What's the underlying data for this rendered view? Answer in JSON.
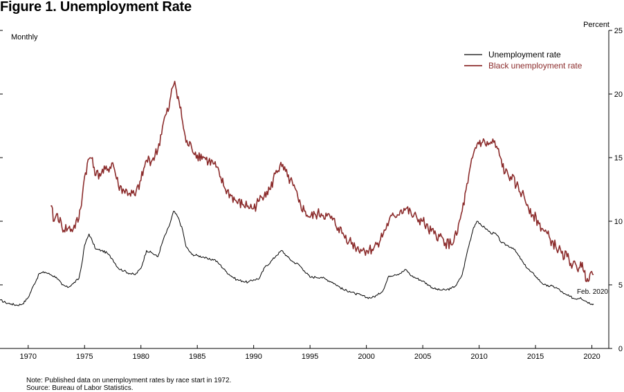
{
  "chart_data": {
    "type": "line",
    "title": "Figure 1. Unemployment Rate",
    "frequency_label": "Monthly",
    "ylabel": "Percent",
    "ylim": [
      0,
      25
    ],
    "y_ticks": [
      0,
      5,
      10,
      15,
      20,
      25
    ],
    "xlim": [
      1967.5,
      2021.5
    ],
    "x_ticks": [
      1970,
      1975,
      1980,
      1985,
      1990,
      1995,
      2000,
      2005,
      2010,
      2015,
      2020
    ],
    "colors": {
      "unemployment": "#000000",
      "black_unemployment": "#8b2b2b"
    },
    "series": [
      {
        "name": "Unemployment rate",
        "points": [
          [
            1967.5,
            3.8
          ],
          [
            1968.0,
            3.6
          ],
          [
            1968.5,
            3.5
          ],
          [
            1969.0,
            3.4
          ],
          [
            1969.5,
            3.5
          ],
          [
            1970.0,
            4.0
          ],
          [
            1970.5,
            5.0
          ],
          [
            1971.0,
            5.9
          ],
          [
            1971.5,
            6.0
          ],
          [
            1972.0,
            5.8
          ],
          [
            1972.5,
            5.6
          ],
          [
            1973.0,
            5.0
          ],
          [
            1973.5,
            4.8
          ],
          [
            1974.0,
            5.1
          ],
          [
            1974.5,
            5.5
          ],
          [
            1974.75,
            6.6
          ],
          [
            1975.0,
            8.1
          ],
          [
            1975.4,
            9.0
          ],
          [
            1975.7,
            8.4
          ],
          [
            1976.0,
            7.8
          ],
          [
            1976.5,
            7.7
          ],
          [
            1977.0,
            7.5
          ],
          [
            1977.5,
            7.0
          ],
          [
            1978.0,
            6.3
          ],
          [
            1978.5,
            6.1
          ],
          [
            1979.0,
            5.9
          ],
          [
            1979.5,
            5.8
          ],
          [
            1980.0,
            6.3
          ],
          [
            1980.5,
            7.7
          ],
          [
            1981.0,
            7.5
          ],
          [
            1981.5,
            7.2
          ],
          [
            1982.0,
            8.6
          ],
          [
            1982.5,
            9.6
          ],
          [
            1982.9,
            10.8
          ],
          [
            1983.3,
            10.3
          ],
          [
            1983.7,
            9.3
          ],
          [
            1984.0,
            8.0
          ],
          [
            1984.5,
            7.4
          ],
          [
            1985.0,
            7.3
          ],
          [
            1985.5,
            7.2
          ],
          [
            1986.0,
            7.0
          ],
          [
            1986.5,
            7.0
          ],
          [
            1987.0,
            6.6
          ],
          [
            1987.5,
            6.1
          ],
          [
            1988.0,
            5.7
          ],
          [
            1988.5,
            5.4
          ],
          [
            1989.0,
            5.3
          ],
          [
            1989.5,
            5.2
          ],
          [
            1990.0,
            5.4
          ],
          [
            1990.5,
            5.5
          ],
          [
            1991.0,
            6.4
          ],
          [
            1991.5,
            6.8
          ],
          [
            1992.0,
            7.3
          ],
          [
            1992.5,
            7.7
          ],
          [
            1993.0,
            7.2
          ],
          [
            1993.5,
            6.8
          ],
          [
            1994.0,
            6.6
          ],
          [
            1994.5,
            6.1
          ],
          [
            1995.0,
            5.6
          ],
          [
            1995.5,
            5.6
          ],
          [
            1996.0,
            5.6
          ],
          [
            1996.5,
            5.4
          ],
          [
            1997.0,
            5.2
          ],
          [
            1997.5,
            4.9
          ],
          [
            1998.0,
            4.6
          ],
          [
            1998.5,
            4.5
          ],
          [
            1999.0,
            4.3
          ],
          [
            1999.5,
            4.2
          ],
          [
            2000.0,
            4.0
          ],
          [
            2000.5,
            4.0
          ],
          [
            2001.0,
            4.2
          ],
          [
            2001.5,
            4.6
          ],
          [
            2002.0,
            5.7
          ],
          [
            2002.5,
            5.8
          ],
          [
            2003.0,
            5.9
          ],
          [
            2003.5,
            6.2
          ],
          [
            2004.0,
            5.7
          ],
          [
            2004.5,
            5.5
          ],
          [
            2005.0,
            5.3
          ],
          [
            2005.5,
            5.0
          ],
          [
            2006.0,
            4.7
          ],
          [
            2006.5,
            4.6
          ],
          [
            2007.0,
            4.6
          ],
          [
            2007.5,
            4.7
          ],
          [
            2008.0,
            5.0
          ],
          [
            2008.5,
            5.8
          ],
          [
            2009.0,
            7.8
          ],
          [
            2009.5,
            9.5
          ],
          [
            2009.8,
            10.0
          ],
          [
            2010.0,
            9.8
          ],
          [
            2010.5,
            9.5
          ],
          [
            2011.0,
            9.1
          ],
          [
            2011.5,
            9.0
          ],
          [
            2012.0,
            8.3
          ],
          [
            2012.5,
            8.1
          ],
          [
            2013.0,
            7.9
          ],
          [
            2013.5,
            7.3
          ],
          [
            2014.0,
            6.6
          ],
          [
            2014.5,
            6.1
          ],
          [
            2015.0,
            5.7
          ],
          [
            2015.5,
            5.2
          ],
          [
            2016.0,
            4.9
          ],
          [
            2016.5,
            4.9
          ],
          [
            2017.0,
            4.7
          ],
          [
            2017.5,
            4.3
          ],
          [
            2018.0,
            4.1
          ],
          [
            2018.5,
            3.9
          ],
          [
            2019.0,
            4.0
          ],
          [
            2019.5,
            3.7
          ],
          [
            2020.0,
            3.5
          ],
          [
            2020.15,
            3.5
          ]
        ]
      },
      {
        "name": "Black unemployment rate",
        "points": [
          [
            1972.0,
            11.2
          ],
          [
            1972.3,
            10.0
          ],
          [
            1972.6,
            10.6
          ],
          [
            1973.0,
            9.5
          ],
          [
            1973.5,
            9.4
          ],
          [
            1974.0,
            9.4
          ],
          [
            1974.5,
            10.2
          ],
          [
            1974.8,
            12.0
          ],
          [
            1975.0,
            13.5
          ],
          [
            1975.4,
            14.9
          ],
          [
            1975.7,
            15.0
          ],
          [
            1976.0,
            13.6
          ],
          [
            1976.5,
            13.8
          ],
          [
            1977.0,
            14.0
          ],
          [
            1977.5,
            14.6
          ],
          [
            1978.0,
            12.8
          ],
          [
            1978.5,
            12.4
          ],
          [
            1979.0,
            12.2
          ],
          [
            1979.5,
            12.0
          ],
          [
            1980.0,
            13.2
          ],
          [
            1980.5,
            14.8
          ],
          [
            1981.0,
            14.8
          ],
          [
            1981.5,
            15.6
          ],
          [
            1982.0,
            17.8
          ],
          [
            1982.5,
            18.9
          ],
          [
            1982.8,
            20.5
          ],
          [
            1983.0,
            21.0
          ],
          [
            1983.3,
            19.8
          ],
          [
            1983.7,
            17.8
          ],
          [
            1984.0,
            16.2
          ],
          [
            1984.5,
            15.8
          ],
          [
            1985.0,
            15.2
          ],
          [
            1985.5,
            15.1
          ],
          [
            1986.0,
            14.7
          ],
          [
            1986.5,
            14.5
          ],
          [
            1987.0,
            13.5
          ],
          [
            1987.5,
            12.5
          ],
          [
            1988.0,
            12.0
          ],
          [
            1988.5,
            11.5
          ],
          [
            1989.0,
            11.3
          ],
          [
            1989.5,
            11.2
          ],
          [
            1990.0,
            11.0
          ],
          [
            1990.5,
            11.6
          ],
          [
            1991.0,
            12.3
          ],
          [
            1991.5,
            12.5
          ],
          [
            1992.0,
            14.0
          ],
          [
            1992.5,
            14.3
          ],
          [
            1993.0,
            13.5
          ],
          [
            1993.5,
            12.8
          ],
          [
            1994.0,
            11.5
          ],
          [
            1994.5,
            10.8
          ],
          [
            1995.0,
            10.3
          ],
          [
            1995.5,
            10.5
          ],
          [
            1996.0,
            10.6
          ],
          [
            1996.5,
            10.4
          ],
          [
            1997.0,
            10.1
          ],
          [
            1997.5,
            9.5
          ],
          [
            1998.0,
            8.9
          ],
          [
            1998.5,
            8.5
          ],
          [
            1999.0,
            8.0
          ],
          [
            1999.5,
            7.8
          ],
          [
            2000.0,
            7.7
          ],
          [
            2000.5,
            7.8
          ],
          [
            2001.0,
            8.3
          ],
          [
            2001.5,
            9.0
          ],
          [
            2002.0,
            10.0
          ],
          [
            2002.5,
            10.4
          ],
          [
            2003.0,
            10.8
          ],
          [
            2003.5,
            11.0
          ],
          [
            2004.0,
            10.5
          ],
          [
            2004.5,
            10.2
          ],
          [
            2005.0,
            10.0
          ],
          [
            2005.5,
            9.3
          ],
          [
            2006.0,
            9.0
          ],
          [
            2006.5,
            8.8
          ],
          [
            2007.0,
            8.3
          ],
          [
            2007.5,
            8.2
          ],
          [
            2008.0,
            8.9
          ],
          [
            2008.5,
            10.8
          ],
          [
            2009.0,
            13.0
          ],
          [
            2009.5,
            15.3
          ],
          [
            2009.9,
            16.2
          ],
          [
            2010.3,
            16.2
          ],
          [
            2010.8,
            16.0
          ],
          [
            2011.3,
            16.2
          ],
          [
            2011.8,
            15.2
          ],
          [
            2012.3,
            13.8
          ],
          [
            2012.8,
            13.5
          ],
          [
            2013.3,
            12.8
          ],
          [
            2013.8,
            12.2
          ],
          [
            2014.3,
            11.3
          ],
          [
            2014.8,
            10.5
          ],
          [
            2015.3,
            9.8
          ],
          [
            2015.8,
            9.2
          ],
          [
            2016.3,
            8.6
          ],
          [
            2016.8,
            8.0
          ],
          [
            2017.3,
            7.5
          ],
          [
            2017.8,
            7.2
          ],
          [
            2018.3,
            6.6
          ],
          [
            2018.7,
            6.2
          ],
          [
            2019.0,
            6.8
          ],
          [
            2019.3,
            6.0
          ],
          [
            2019.6,
            5.5
          ],
          [
            2019.9,
            6.0
          ],
          [
            2020.15,
            5.8
          ]
        ]
      }
    ],
    "annotations": [
      {
        "text": "Feb. 2020"
      }
    ]
  },
  "notes": {
    "note": "Note: Published data on unemployment rates by race start in 1972.",
    "source": "Source: Bureau of Labor Statistics."
  }
}
